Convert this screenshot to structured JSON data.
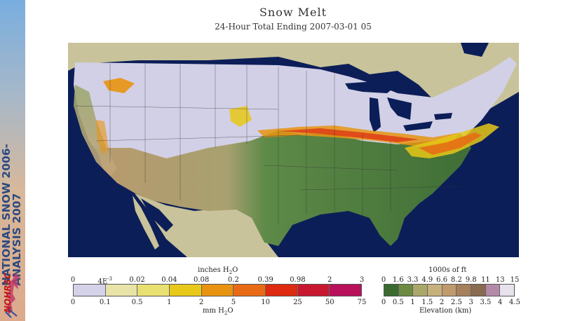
{
  "banner": {
    "line1": "NATIONAL SNOW 2006-",
    "line2": "ANALYSIS 2007",
    "logo_text": "NOHRSC"
  },
  "header": {
    "title": "Snow Melt",
    "subtitle": "24-Hour Total Ending 2007-03-01 05"
  },
  "melt_legend": {
    "top_label": "inches H",
    "top_label_sub": "2",
    "top_label_end": "O",
    "bottom_label": "mm H",
    "bottom_label_sub": "2",
    "bottom_label_end": "O",
    "inch_ticks": [
      "0",
      "4E",
      "0.02",
      "0.04",
      "0.08",
      "0.2",
      "0.39",
      "0.98",
      "2",
      "3"
    ],
    "inch_tick_sup": "-3",
    "mm_ticks": [
      "0",
      "0.1",
      "0.5",
      "1",
      "2",
      "5",
      "10",
      "25",
      "50",
      "75"
    ],
    "colors": [
      "#d4d2e8",
      "#e8e4a8",
      "#e8e070",
      "#e8c818",
      "#e89410",
      "#e86a14",
      "#dd2a10",
      "#c81830",
      "#b8105a"
    ]
  },
  "elev_legend": {
    "top_label": "1000s of ft",
    "bottom_label": "Elevation (km)",
    "ft_ticks": [
      "0",
      "1.6",
      "3.3",
      "4.9",
      "6.6",
      "8.2",
      "9.8",
      "11",
      "13",
      "15"
    ],
    "km_ticks": [
      "0",
      "0.5",
      "1",
      "1.5",
      "2",
      "2.5",
      "3",
      "3.5",
      "4",
      "4.5"
    ],
    "colors": [
      "#3a6a30",
      "#6c8a42",
      "#a9a86a",
      "#c6b07c",
      "#c09a6c",
      "#a6805a",
      "#8a6a50",
      "#b48aa8",
      "#e8e2ec"
    ]
  }
}
